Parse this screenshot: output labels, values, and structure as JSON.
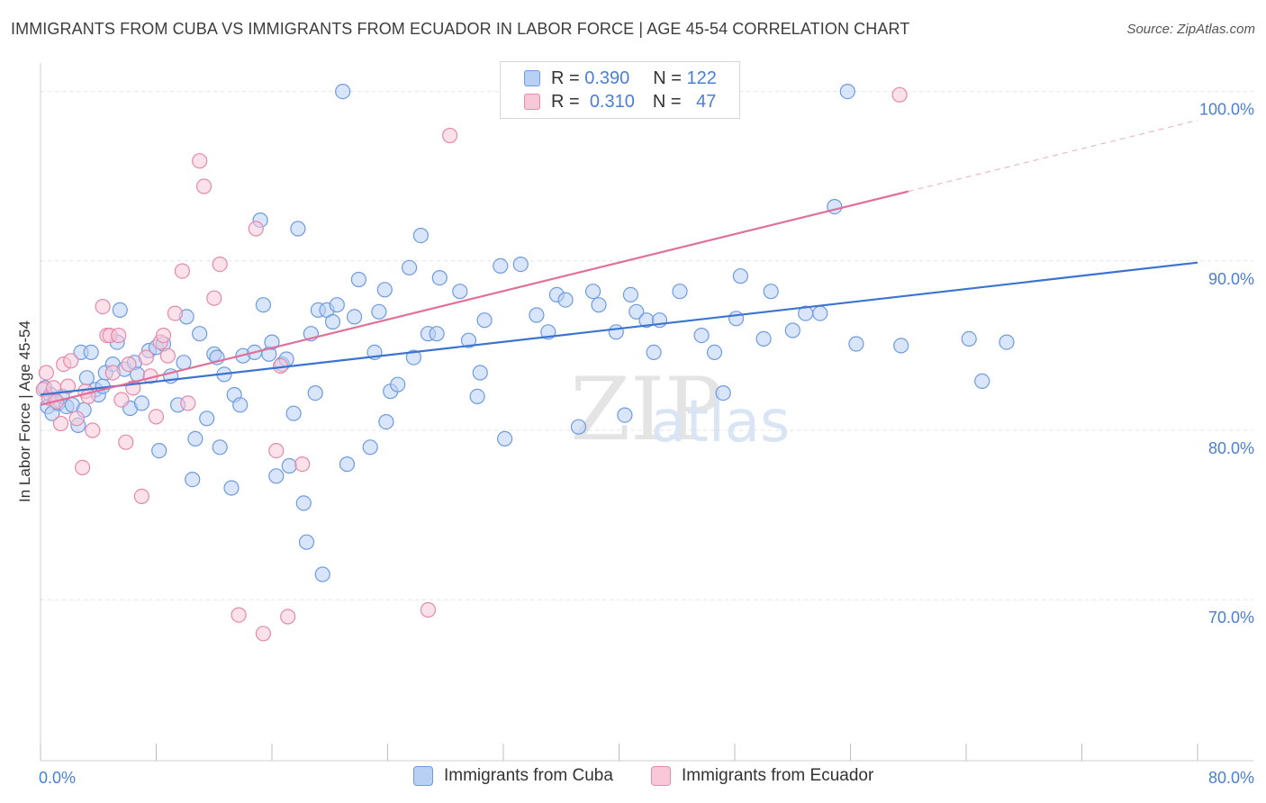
{
  "title": "IMMIGRANTS FROM CUBA VS IMMIGRANTS FROM ECUADOR IN LABOR FORCE | AGE 45-54 CORRELATION CHART",
  "source": "Source: ZipAtlas.com",
  "watermark": {
    "zip": "ZIP",
    "atlas": "atlas"
  },
  "colors": {
    "cuba_fill": "#b9d0f5",
    "cuba_stroke": "#6d9be0",
    "cuba_line": "#3a74d0",
    "ecuador_fill": "#f8c8d8",
    "ecuador_stroke": "#e58aa8",
    "ecuador_line": "#e0709a",
    "tick_label": "#4a7fd4",
    "grid": "#e3e3e3"
  },
  "legend": {
    "rows": [
      {
        "r_label": "R =",
        "r_value": "0.390",
        "n_label": "N =",
        "n_value": "122"
      },
      {
        "r_label": "R =",
        "r_value": "0.310",
        "n_label": "N =",
        "n_value": "47"
      }
    ]
  },
  "bottom_legend": {
    "cuba": "Immigrants from Cuba",
    "ecuador": "Immigrants from Ecuador"
  },
  "chart_data": {
    "type": "scatter",
    "xlabel": "",
    "ylabel": "In Labor Force | Age 45-54",
    "xlim": [
      0,
      80
    ],
    "ylim": [
      60.5,
      101.2
    ],
    "x_tick_labels": [
      {
        "value": 0,
        "label": "0.0%"
      },
      {
        "value": 80,
        "label": "80.0%"
      }
    ],
    "y_tick_labels": [
      {
        "value": 70,
        "label": "70.0%"
      },
      {
        "value": 80,
        "label": "80.0%"
      },
      {
        "value": 90,
        "label": "90.0%"
      },
      {
        "value": 100,
        "label": "100.0%"
      }
    ],
    "series": [
      {
        "name": "Immigrants from Cuba",
        "R": 0.39,
        "N": 122,
        "trend": {
          "x0": 0,
          "y0": 82.1,
          "x1": 80,
          "y1": 89.9,
          "solid_until": 80
        },
        "points": [
          [
            0.3,
            82.5
          ],
          [
            0.5,
            81.4
          ],
          [
            0.7,
            82.1
          ],
          [
            0.8,
            81.0
          ],
          [
            1.0,
            81.8
          ],
          [
            1.2,
            81.6
          ],
          [
            1.5,
            82.0
          ],
          [
            1.8,
            81.4
          ],
          [
            2.2,
            81.5
          ],
          [
            2.6,
            80.3
          ],
          [
            2.8,
            84.6
          ],
          [
            3.0,
            81.2
          ],
          [
            3.2,
            83.1
          ],
          [
            3.5,
            84.6
          ],
          [
            3.8,
            82.4
          ],
          [
            4.0,
            82.1
          ],
          [
            4.3,
            82.6
          ],
          [
            4.5,
            83.4
          ],
          [
            5.0,
            83.9
          ],
          [
            5.3,
            85.2
          ],
          [
            5.5,
            87.1
          ],
          [
            5.8,
            83.6
          ],
          [
            6.2,
            81.3
          ],
          [
            6.5,
            84.0
          ],
          [
            6.7,
            83.3
          ],
          [
            7.0,
            81.6
          ],
          [
            7.5,
            84.7
          ],
          [
            8.0,
            84.9
          ],
          [
            8.2,
            78.8
          ],
          [
            8.5,
            85.1
          ],
          [
            9.0,
            83.2
          ],
          [
            9.5,
            81.5
          ],
          [
            9.9,
            84.0
          ],
          [
            10.1,
            86.7
          ],
          [
            10.5,
            77.1
          ],
          [
            10.7,
            79.5
          ],
          [
            11.0,
            85.7
          ],
          [
            11.5,
            80.7
          ],
          [
            12.0,
            84.5
          ],
          [
            12.2,
            84.3
          ],
          [
            12.4,
            79.0
          ],
          [
            12.7,
            83.3
          ],
          [
            13.2,
            76.6
          ],
          [
            13.4,
            82.1
          ],
          [
            13.8,
            81.5
          ],
          [
            14.0,
            84.4
          ],
          [
            14.8,
            84.6
          ],
          [
            15.2,
            92.4
          ],
          [
            15.4,
            87.4
          ],
          [
            15.8,
            84.5
          ],
          [
            16.0,
            85.2
          ],
          [
            16.3,
            77.3
          ],
          [
            16.7,
            83.9
          ],
          [
            17.0,
            84.2
          ],
          [
            17.2,
            77.9
          ],
          [
            17.5,
            81.0
          ],
          [
            17.8,
            91.9
          ],
          [
            18.2,
            75.7
          ],
          [
            18.4,
            73.4
          ],
          [
            18.7,
            85.7
          ],
          [
            19.0,
            82.2
          ],
          [
            19.2,
            87.1
          ],
          [
            19.5,
            71.5
          ],
          [
            19.8,
            87.1
          ],
          [
            20.2,
            86.4
          ],
          [
            20.5,
            87.4
          ],
          [
            20.9,
            100.0
          ],
          [
            21.2,
            78.0
          ],
          [
            21.7,
            86.7
          ],
          [
            22.0,
            88.9
          ],
          [
            22.8,
            79.0
          ],
          [
            23.1,
            84.6
          ],
          [
            23.4,
            87.0
          ],
          [
            23.8,
            88.3
          ],
          [
            23.9,
            80.5
          ],
          [
            24.2,
            82.3
          ],
          [
            24.7,
            82.7
          ],
          [
            25.5,
            89.6
          ],
          [
            25.8,
            84.3
          ],
          [
            26.3,
            91.5
          ],
          [
            26.8,
            85.7
          ],
          [
            27.4,
            85.7
          ],
          [
            27.6,
            89.0
          ],
          [
            29.0,
            88.2
          ],
          [
            29.6,
            85.3
          ],
          [
            30.2,
            82.0
          ],
          [
            30.4,
            83.4
          ],
          [
            30.7,
            86.5
          ],
          [
            31.8,
            89.7
          ],
          [
            32.1,
            79.5
          ],
          [
            33.2,
            89.8
          ],
          [
            34.3,
            86.8
          ],
          [
            35.1,
            85.8
          ],
          [
            35.7,
            88.0
          ],
          [
            36.3,
            87.7
          ],
          [
            37.2,
            80.2
          ],
          [
            38.2,
            88.2
          ],
          [
            38.6,
            87.4
          ],
          [
            39.8,
            85.8
          ],
          [
            40.4,
            80.9
          ],
          [
            40.8,
            88.0
          ],
          [
            41.2,
            87.0
          ],
          [
            41.9,
            86.5
          ],
          [
            42.4,
            84.6
          ],
          [
            42.8,
            86.5
          ],
          [
            44.2,
            88.2
          ],
          [
            45.7,
            85.6
          ],
          [
            46.6,
            84.6
          ],
          [
            47.2,
            82.2
          ],
          [
            48.1,
            86.6
          ],
          [
            48.4,
            89.1
          ],
          [
            50.0,
            85.4
          ],
          [
            50.5,
            88.2
          ],
          [
            52.0,
            85.9
          ],
          [
            52.9,
            86.9
          ],
          [
            53.9,
            86.9
          ],
          [
            54.9,
            93.2
          ],
          [
            55.8,
            100.0
          ],
          [
            56.4,
            85.1
          ],
          [
            59.5,
            85.0
          ],
          [
            64.2,
            85.4
          ],
          [
            65.1,
            82.9
          ],
          [
            66.8,
            85.2
          ]
        ]
      },
      {
        "name": "Immigrants from Ecuador",
        "R": 0.31,
        "N": 47,
        "trend": {
          "x0": 0,
          "y0": 81.5,
          "x1": 80,
          "y1": 98.3,
          "solid_until": 60
        },
        "points": [
          [
            0.2,
            82.4
          ],
          [
            0.4,
            83.4
          ],
          [
            0.6,
            81.9
          ],
          [
            0.9,
            82.5
          ],
          [
            1.1,
            81.7
          ],
          [
            1.4,
            80.4
          ],
          [
            1.6,
            83.9
          ],
          [
            1.9,
            82.6
          ],
          [
            2.1,
            84.1
          ],
          [
            2.5,
            80.7
          ],
          [
            2.9,
            77.8
          ],
          [
            3.1,
            82.3
          ],
          [
            3.3,
            82.0
          ],
          [
            3.6,
            80.0
          ],
          [
            4.3,
            87.3
          ],
          [
            4.6,
            85.6
          ],
          [
            4.8,
            85.6
          ],
          [
            5.0,
            83.4
          ],
          [
            5.4,
            85.6
          ],
          [
            5.6,
            81.8
          ],
          [
            5.9,
            79.3
          ],
          [
            6.1,
            83.9
          ],
          [
            6.4,
            82.5
          ],
          [
            7.0,
            76.1
          ],
          [
            7.3,
            84.3
          ],
          [
            7.6,
            83.2
          ],
          [
            8.0,
            80.8
          ],
          [
            8.3,
            85.2
          ],
          [
            8.5,
            85.6
          ],
          [
            8.8,
            84.4
          ],
          [
            9.3,
            86.9
          ],
          [
            9.8,
            89.4
          ],
          [
            10.2,
            81.6
          ],
          [
            11.0,
            95.9
          ],
          [
            11.3,
            94.4
          ],
          [
            12.0,
            87.8
          ],
          [
            12.4,
            89.8
          ],
          [
            13.7,
            69.1
          ],
          [
            14.9,
            91.9
          ],
          [
            15.4,
            68.0
          ],
          [
            16.3,
            78.8
          ],
          [
            16.6,
            83.8
          ],
          [
            17.1,
            69.0
          ],
          [
            18.1,
            78.0
          ],
          [
            26.8,
            69.4
          ],
          [
            28.3,
            97.4
          ],
          [
            59.4,
            99.8
          ]
        ]
      }
    ]
  }
}
